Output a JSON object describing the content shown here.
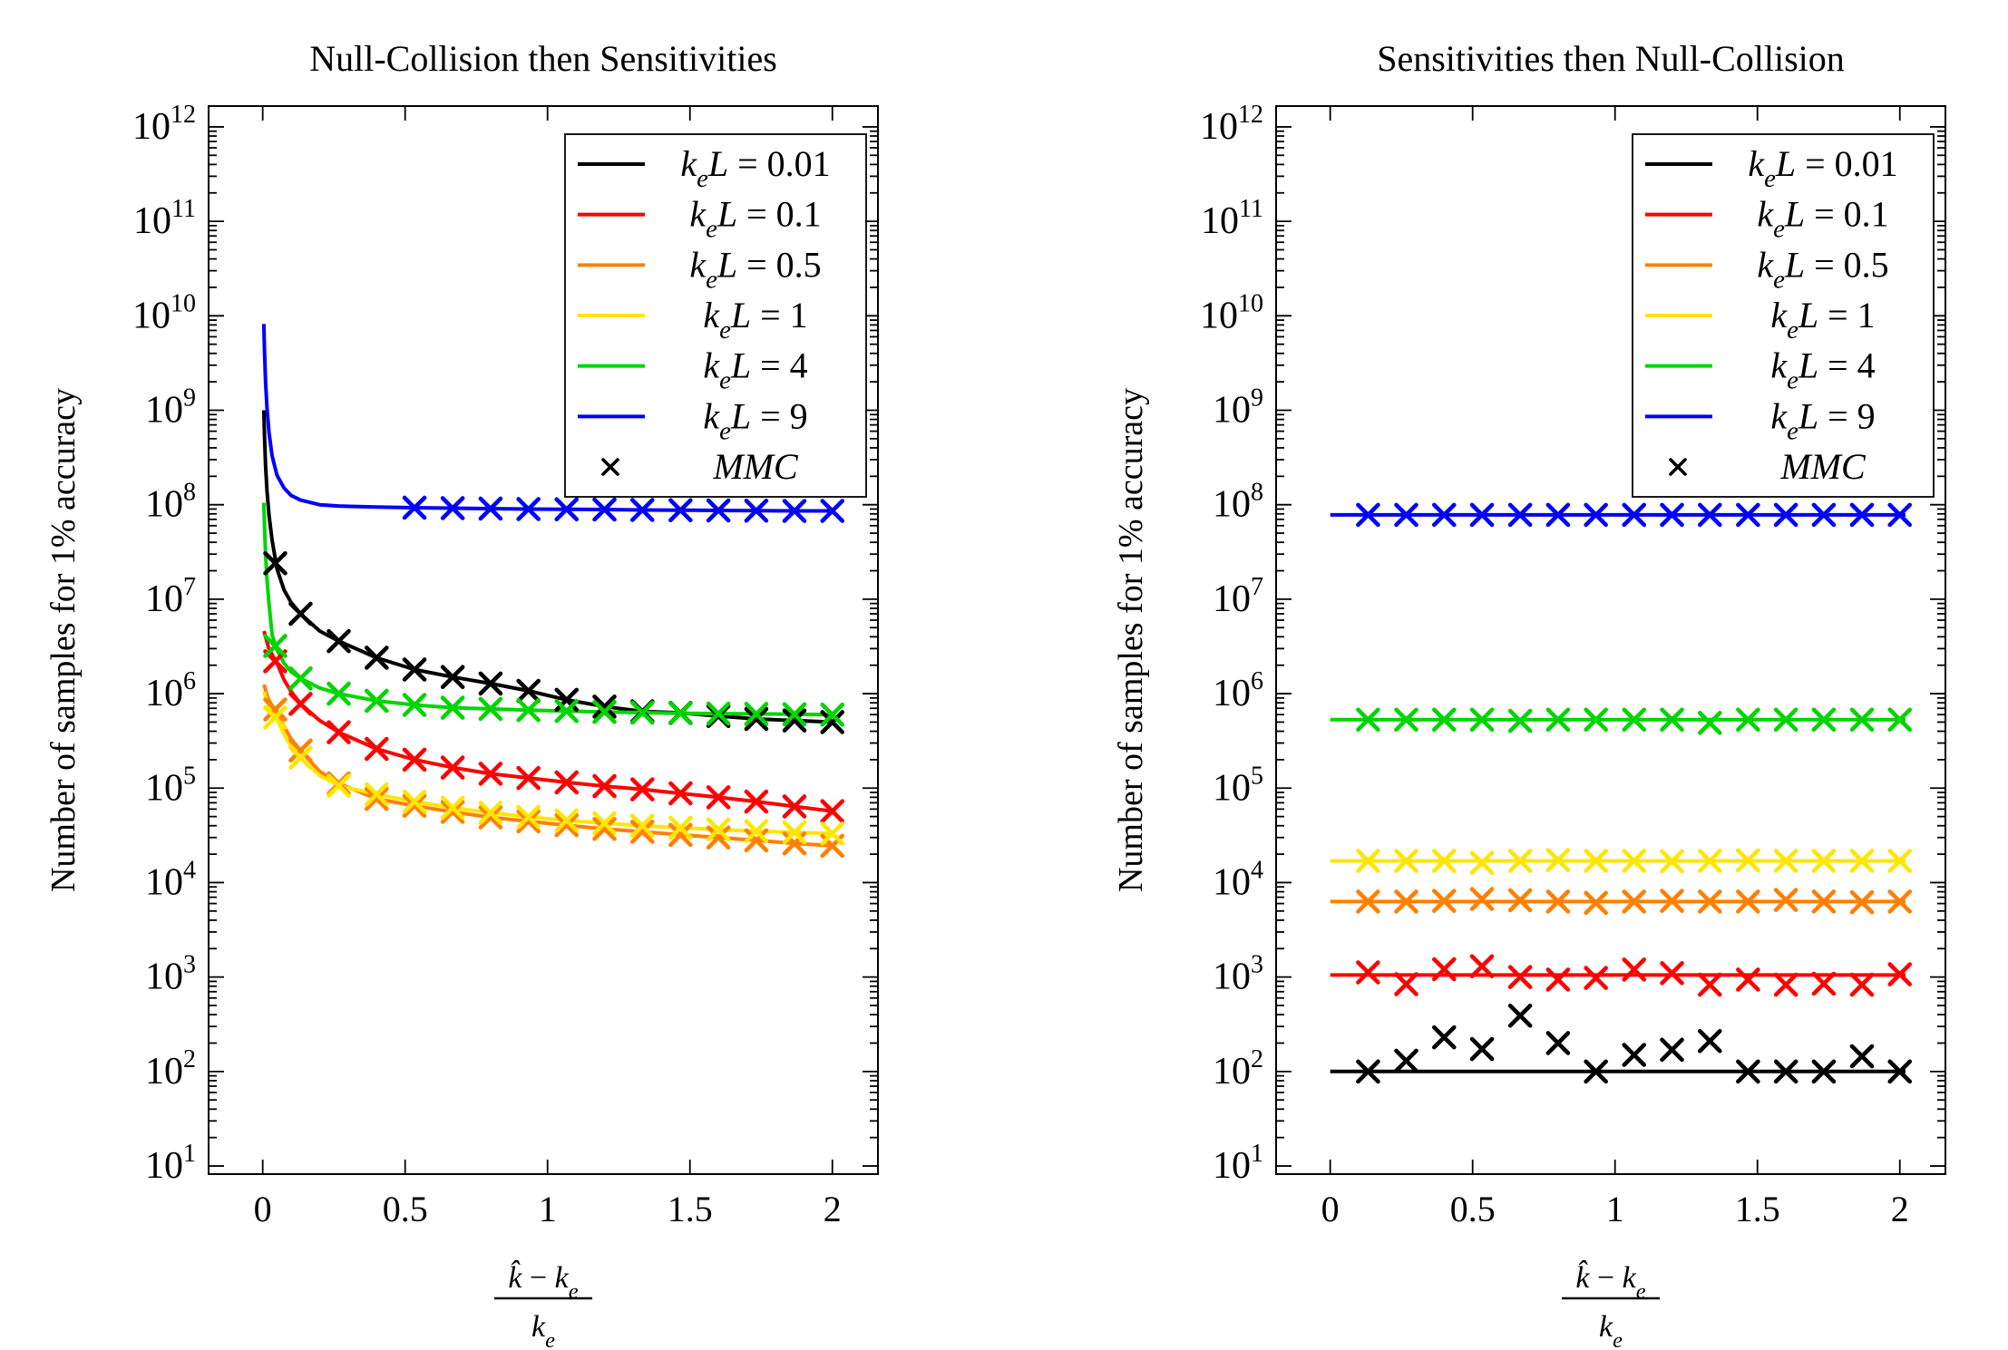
{
  "chart_data": [
    {
      "type": "line",
      "title": "Null-Collision then Sensitivities",
      "ylabel": "Number of samples for 1% accuracy",
      "xlabel": {
        "numerator": "k̂ − k_e",
        "denominator": "k_e"
      },
      "x_ticks": [
        0,
        0.5,
        1,
        1.5,
        2
      ],
      "x_tick_labels": [
        "0",
        "0.5",
        "1",
        "1.5",
        "2"
      ],
      "y_tick_exponents": [
        1,
        2,
        3,
        4,
        5,
        6,
        7,
        8,
        9,
        10,
        11,
        12
      ],
      "xlim": [
        -0.19,
        2.16
      ],
      "ylim_log10": [
        0.914,
        12.22
      ],
      "grid": false,
      "legend_position": "top-right",
      "marker_legend_label": "MMC",
      "series": [
        {
          "name": "keL-0.01",
          "label": "k_eL = 0.01",
          "color": "#000000",
          "line_x": [
            0.004,
            0.006,
            0.01,
            0.015,
            0.022,
            0.033,
            0.05,
            0.075,
            0.1,
            0.133,
            0.2,
            0.267,
            0.4,
            0.533,
            0.667,
            0.8,
            0.933,
            1.067,
            1.2,
            1.333,
            1.467,
            1.6,
            1.733,
            1.867,
            2.0
          ],
          "line_y": [
            1000000000.0,
            550000000.0,
            260000000.0,
            140000000.0,
            78000000.0,
            42000000.0,
            21000000.0,
            12500000.0,
            9200000.0,
            7000000.0,
            4600000.0,
            3600000.0,
            2400000.0,
            1800000.0,
            1500000.0,
            1280000.0,
            1070000.0,
            860000.0,
            730000.0,
            650000.0,
            625000.0,
            580000.0,
            540000.0,
            520000.0,
            500000.0
          ],
          "marker_x": [
            0.044,
            0.133,
            0.267,
            0.4,
            0.533,
            0.667,
            0.8,
            0.933,
            1.067,
            1.2,
            1.333,
            1.467,
            1.6,
            1.733,
            1.867,
            2.0
          ],
          "marker_y": [
            24000000.0,
            7000000.0,
            3600000.0,
            2400000.0,
            1800000.0,
            1500000.0,
            1280000.0,
            1070000.0,
            860000.0,
            730000.0,
            650000.0,
            625000.0,
            580000.0,
            540000.0,
            520000.0,
            500000.0
          ]
        },
        {
          "name": "keL-0.1",
          "label": "k_eL = 0.1",
          "color": "#ff0000",
          "line_x": [
            0.005,
            0.008,
            0.013,
            0.02,
            0.033,
            0.05,
            0.075,
            0.1,
            0.133,
            0.2,
            0.267,
            0.4,
            0.533,
            0.667,
            0.8,
            0.933,
            1.067,
            1.2,
            1.333,
            1.467,
            1.6,
            1.733,
            1.867,
            2.0
          ],
          "line_y": [
            4600000.0,
            4200000.0,
            3700000.0,
            3100000.0,
            2600000.0,
            2100000.0,
            1400000.0,
            1050000.0,
            780000.0,
            520000.0,
            390000.0,
            260000.0,
            200000.0,
            165000.0,
            142000.0,
            128000.0,
            115000.0,
            105000.0,
            97000.0,
            88000.0,
            80000.0,
            72000.0,
            64000.0,
            57000.0
          ],
          "marker_x": [
            0.044,
            0.133,
            0.267,
            0.4,
            0.533,
            0.667,
            0.8,
            0.933,
            1.067,
            1.2,
            1.333,
            1.467,
            1.6,
            1.733,
            1.867,
            2.0
          ],
          "marker_y": [
            2200000.0,
            780000.0,
            390000.0,
            260000.0,
            200000.0,
            165000.0,
            142000.0,
            128000.0,
            115000.0,
            105000.0,
            97000.0,
            88000.0,
            80000.0,
            72000.0,
            64000.0,
            57000.0
          ]
        },
        {
          "name": "keL-0.5",
          "label": "k_eL = 0.5",
          "color": "#ff8000",
          "line_x": [
            0.005,
            0.008,
            0.013,
            0.02,
            0.033,
            0.05,
            0.075,
            0.1,
            0.133,
            0.2,
            0.267,
            0.4,
            0.533,
            0.667,
            0.8,
            0.933,
            1.067,
            1.2,
            1.333,
            1.467,
            1.6,
            1.733,
            1.867,
            2.0
          ],
          "line_y": [
            1250000.0,
            1150000.0,
            1000000.0,
            880000.0,
            740000.0,
            640000.0,
            450000.0,
            330000.0,
            250000.0,
            150000.0,
            112000.0,
            77000.0,
            65000.0,
            56000.0,
            49000.0,
            44500.0,
            40500.0,
            37000.0,
            34500.0,
            32000.0,
            30000.0,
            28000.0,
            26000.0,
            24500.0
          ],
          "marker_x": [
            0.044,
            0.133,
            0.267,
            0.4,
            0.533,
            0.667,
            0.8,
            0.933,
            1.067,
            1.2,
            1.333,
            1.467,
            1.6,
            1.733,
            1.867,
            2.0
          ],
          "marker_y": [
            680000.0,
            250000.0,
            112000.0,
            77000.0,
            65000.0,
            56000.0,
            49000.0,
            44500.0,
            40500.0,
            37000.0,
            34500.0,
            32000.0,
            30000.0,
            28000.0,
            26000.0,
            24500.0
          ]
        },
        {
          "name": "keL-1",
          "label": "k_eL = 1",
          "color": "#ffe600",
          "line_x": [
            0.005,
            0.008,
            0.013,
            0.02,
            0.033,
            0.05,
            0.075,
            0.1,
            0.133,
            0.2,
            0.267,
            0.4,
            0.533,
            0.667,
            0.8,
            0.933,
            1.067,
            1.2,
            1.333,
            1.467,
            1.6,
            1.733,
            1.867,
            2.0
          ],
          "line_y": [
            1050000.0,
            960000.0,
            860000.0,
            760000.0,
            640000.0,
            540000.0,
            370000.0,
            275000.0,
            210000.0,
            136000.0,
            106000.0,
            86000.0,
            72000.0,
            62000.0,
            55000.0,
            49500.0,
            45500.0,
            42500.0,
            40000.0,
            38000.0,
            36500.0,
            35000.0,
            34000.0,
            33000.0
          ],
          "marker_x": [
            0.044,
            0.133,
            0.267,
            0.4,
            0.533,
            0.667,
            0.8,
            0.933,
            1.067,
            1.2,
            1.333,
            1.467,
            1.6,
            1.733,
            1.867,
            2.0
          ],
          "marker_y": [
            560000.0,
            210000.0,
            106000.0,
            86000.0,
            72000.0,
            62000.0,
            55000.0,
            49500.0,
            45500.0,
            42500.0,
            40000.0,
            38000.0,
            36500.0,
            35000.0,
            34000.0,
            33000.0
          ]
        },
        {
          "name": "keL-4",
          "label": "k_eL = 4",
          "color": "#00d500",
          "line_x": [
            0.004,
            0.006,
            0.01,
            0.015,
            0.022,
            0.033,
            0.05,
            0.075,
            0.1,
            0.133,
            0.2,
            0.267,
            0.4,
            0.533,
            0.667,
            0.8,
            0.933,
            1.067,
            1.2,
            1.333,
            1.467,
            1.6,
            1.733,
            1.867,
            2.0
          ],
          "line_y": [
            105000000.0,
            60000000.0,
            30000000.0,
            16000000.0,
            9000000.0,
            4200000.0,
            2900000.0,
            2100000.0,
            1700000.0,
            1450000.0,
            1150000.0,
            1000000.0,
            840000.0,
            760000.0,
            710000.0,
            690000.0,
            670000.0,
            655000.0,
            640000.0,
            630000.0,
            620000.0,
            615000.0,
            610000.0,
            605000.0,
            600000.0
          ],
          "marker_x": [
            0.044,
            0.133,
            0.267,
            0.4,
            0.533,
            0.667,
            0.8,
            0.933,
            1.067,
            1.2,
            1.333,
            1.467,
            1.6,
            1.733,
            1.867,
            2.0
          ],
          "marker_y": [
            3200000.0,
            1450000.0,
            1000000.0,
            840000.0,
            760000.0,
            710000.0,
            690000.0,
            670000.0,
            655000.0,
            640000.0,
            630000.0,
            620000.0,
            615000.0,
            610000.0,
            605000.0,
            600000.0
          ]
        },
        {
          "name": "keL-9",
          "label": "k_eL = 9",
          "color": "#0000ff",
          "line_x": [
            0.004,
            0.006,
            0.01,
            0.015,
            0.022,
            0.033,
            0.05,
            0.075,
            0.1,
            0.133,
            0.2,
            0.267,
            0.4,
            0.533,
            0.667,
            0.8,
            0.933,
            1.067,
            1.2,
            1.333,
            1.467,
            1.6,
            1.733,
            1.867,
            2.0
          ],
          "line_y": [
            8200000000.0,
            4400000000.0,
            2000000000.0,
            1050000000.0,
            580000000.0,
            330000000.0,
            205000000.0,
            150000000.0,
            125000000.0,
            112000000.0,
            100000000.0,
            97000000.0,
            94500000.0,
            93000000.0,
            92000000.0,
            91000000.0,
            90000000.0,
            89500000.0,
            89000000.0,
            88000000.0,
            87500000.0,
            87000000.0,
            86500000.0,
            86000000.0,
            86000000.0
          ],
          "marker_x": [
            0.533,
            0.667,
            0.8,
            0.933,
            1.067,
            1.2,
            1.333,
            1.467,
            1.6,
            1.733,
            1.867,
            2.0
          ],
          "marker_y": [
            93000000.0,
            92000000.0,
            91000000.0,
            90000000.0,
            89500000.0,
            89000000.0,
            88000000.0,
            87500000.0,
            87000000.0,
            86500000.0,
            86000000.0,
            86000000.0
          ]
        }
      ]
    },
    {
      "type": "line",
      "title": "Sensitivities then Null-Collision",
      "ylabel": "Number of samples for 1% accuracy",
      "xlabel": {
        "numerator": "k̂ − k_e",
        "denominator": "k_e"
      },
      "x_ticks": [
        0,
        0.5,
        1,
        1.5,
        2
      ],
      "x_tick_labels": [
        "0",
        "0.5",
        "1",
        "1.5",
        "2"
      ],
      "y_tick_exponents": [
        1,
        2,
        3,
        4,
        5,
        6,
        7,
        8,
        9,
        10,
        11,
        12
      ],
      "xlim": [
        -0.19,
        2.16
      ],
      "ylim_log10": [
        0.914,
        12.22
      ],
      "grid": false,
      "legend_position": "top-right",
      "marker_legend_label": "MMC",
      "series": [
        {
          "name": "keL-0.01",
          "label": "k_eL = 0.01",
          "color": "#000000",
          "line_x": [
            0.0,
            2.02
          ],
          "line_y": [
            100.0,
            100.0
          ],
          "marker_x": [
            0.133,
            0.267,
            0.4,
            0.533,
            0.667,
            0.8,
            0.933,
            1.067,
            1.2,
            1.333,
            1.467,
            1.6,
            1.733,
            1.867,
            2.0
          ],
          "marker_y": [
            100.0,
            130.0,
            230.0,
            173.0,
            390.0,
            200.0,
            100.0,
            150.0,
            170.0,
            210.0,
            100.0,
            100.0,
            100.0,
            145.0,
            100.0
          ]
        },
        {
          "name": "keL-0.1",
          "label": "k_eL = 0.1",
          "color": "#ff0000",
          "line_x": [
            0.0,
            2.02
          ],
          "line_y": [
            1050.0,
            1050.0
          ],
          "marker_x": [
            0.133,
            0.267,
            0.4,
            0.533,
            0.667,
            0.8,
            0.933,
            1.067,
            1.2,
            1.333,
            1.467,
            1.6,
            1.733,
            1.867,
            2.0
          ],
          "marker_y": [
            1120.0,
            840.0,
            1210.0,
            1300.0,
            1000.0,
            940.0,
            980.0,
            1200.0,
            1100.0,
            830.0,
            940.0,
            830.0,
            850.0,
            830.0,
            1070.0
          ]
        },
        {
          "name": "keL-0.5",
          "label": "k_eL = 0.5",
          "color": "#ff8000",
          "line_x": [
            0.0,
            2.02
          ],
          "line_y": [
            6300.0,
            6300.0
          ],
          "marker_x": [
            0.133,
            0.267,
            0.4,
            0.533,
            0.667,
            0.8,
            0.933,
            1.067,
            1.2,
            1.333,
            1.467,
            1.6,
            1.733,
            1.867,
            2.0
          ],
          "marker_y": [
            6300.0,
            6300.0,
            6400.0,
            6700.0,
            6500.0,
            6300.0,
            6100.0,
            6300.0,
            6400.0,
            6300.0,
            6300.0,
            6550.0,
            6300.0,
            6200.0,
            6300.0
          ]
        },
        {
          "name": "keL-1",
          "label": "k_eL = 1",
          "color": "#ffe600",
          "line_x": [
            0.0,
            2.02
          ],
          "line_y": [
            17000.0,
            17000.0
          ],
          "marker_x": [
            0.133,
            0.267,
            0.4,
            0.533,
            0.667,
            0.8,
            0.933,
            1.067,
            1.2,
            1.333,
            1.467,
            1.6,
            1.733,
            1.867,
            2.0
          ],
          "marker_y": [
            17000.0,
            17000.0,
            17000.0,
            16200.0,
            17000.0,
            17300.0,
            17000.0,
            17000.0,
            16800.0,
            17000.0,
            17200.0,
            17000.0,
            17000.0,
            17000.0,
            17000.0
          ]
        },
        {
          "name": "keL-4",
          "label": "k_eL = 4",
          "color": "#00d500",
          "line_x": [
            0.0,
            2.02
          ],
          "line_y": [
            530000.0,
            530000.0
          ],
          "marker_x": [
            0.133,
            0.267,
            0.4,
            0.533,
            0.667,
            0.8,
            0.933,
            1.067,
            1.2,
            1.333,
            1.467,
            1.6,
            1.733,
            1.867,
            2.0
          ],
          "marker_y": [
            530000.0,
            530000.0,
            530000.0,
            530000.0,
            515000.0,
            530000.0,
            530000.0,
            530000.0,
            530000.0,
            490000.0,
            530000.0,
            530000.0,
            530000.0,
            530000.0,
            530000.0
          ]
        },
        {
          "name": "keL-9",
          "label": "k_eL = 9",
          "color": "#0000ff",
          "line_x": [
            0.0,
            2.02
          ],
          "line_y": [
            78000000.0,
            78000000.0
          ],
          "marker_x": [
            0.133,
            0.267,
            0.4,
            0.533,
            0.667,
            0.8,
            0.933,
            1.067,
            1.2,
            1.333,
            1.467,
            1.6,
            1.733,
            1.867,
            2.0
          ],
          "marker_y": [
            78000000.0,
            78000000.0,
            78000000.0,
            78000000.0,
            78000000.0,
            78000000.0,
            78000000.0,
            78000000.0,
            78000000.0,
            78000000.0,
            78000000.0,
            78000000.0,
            78000000.0,
            78000000.0,
            78000000.0
          ]
        }
      ]
    }
  ]
}
